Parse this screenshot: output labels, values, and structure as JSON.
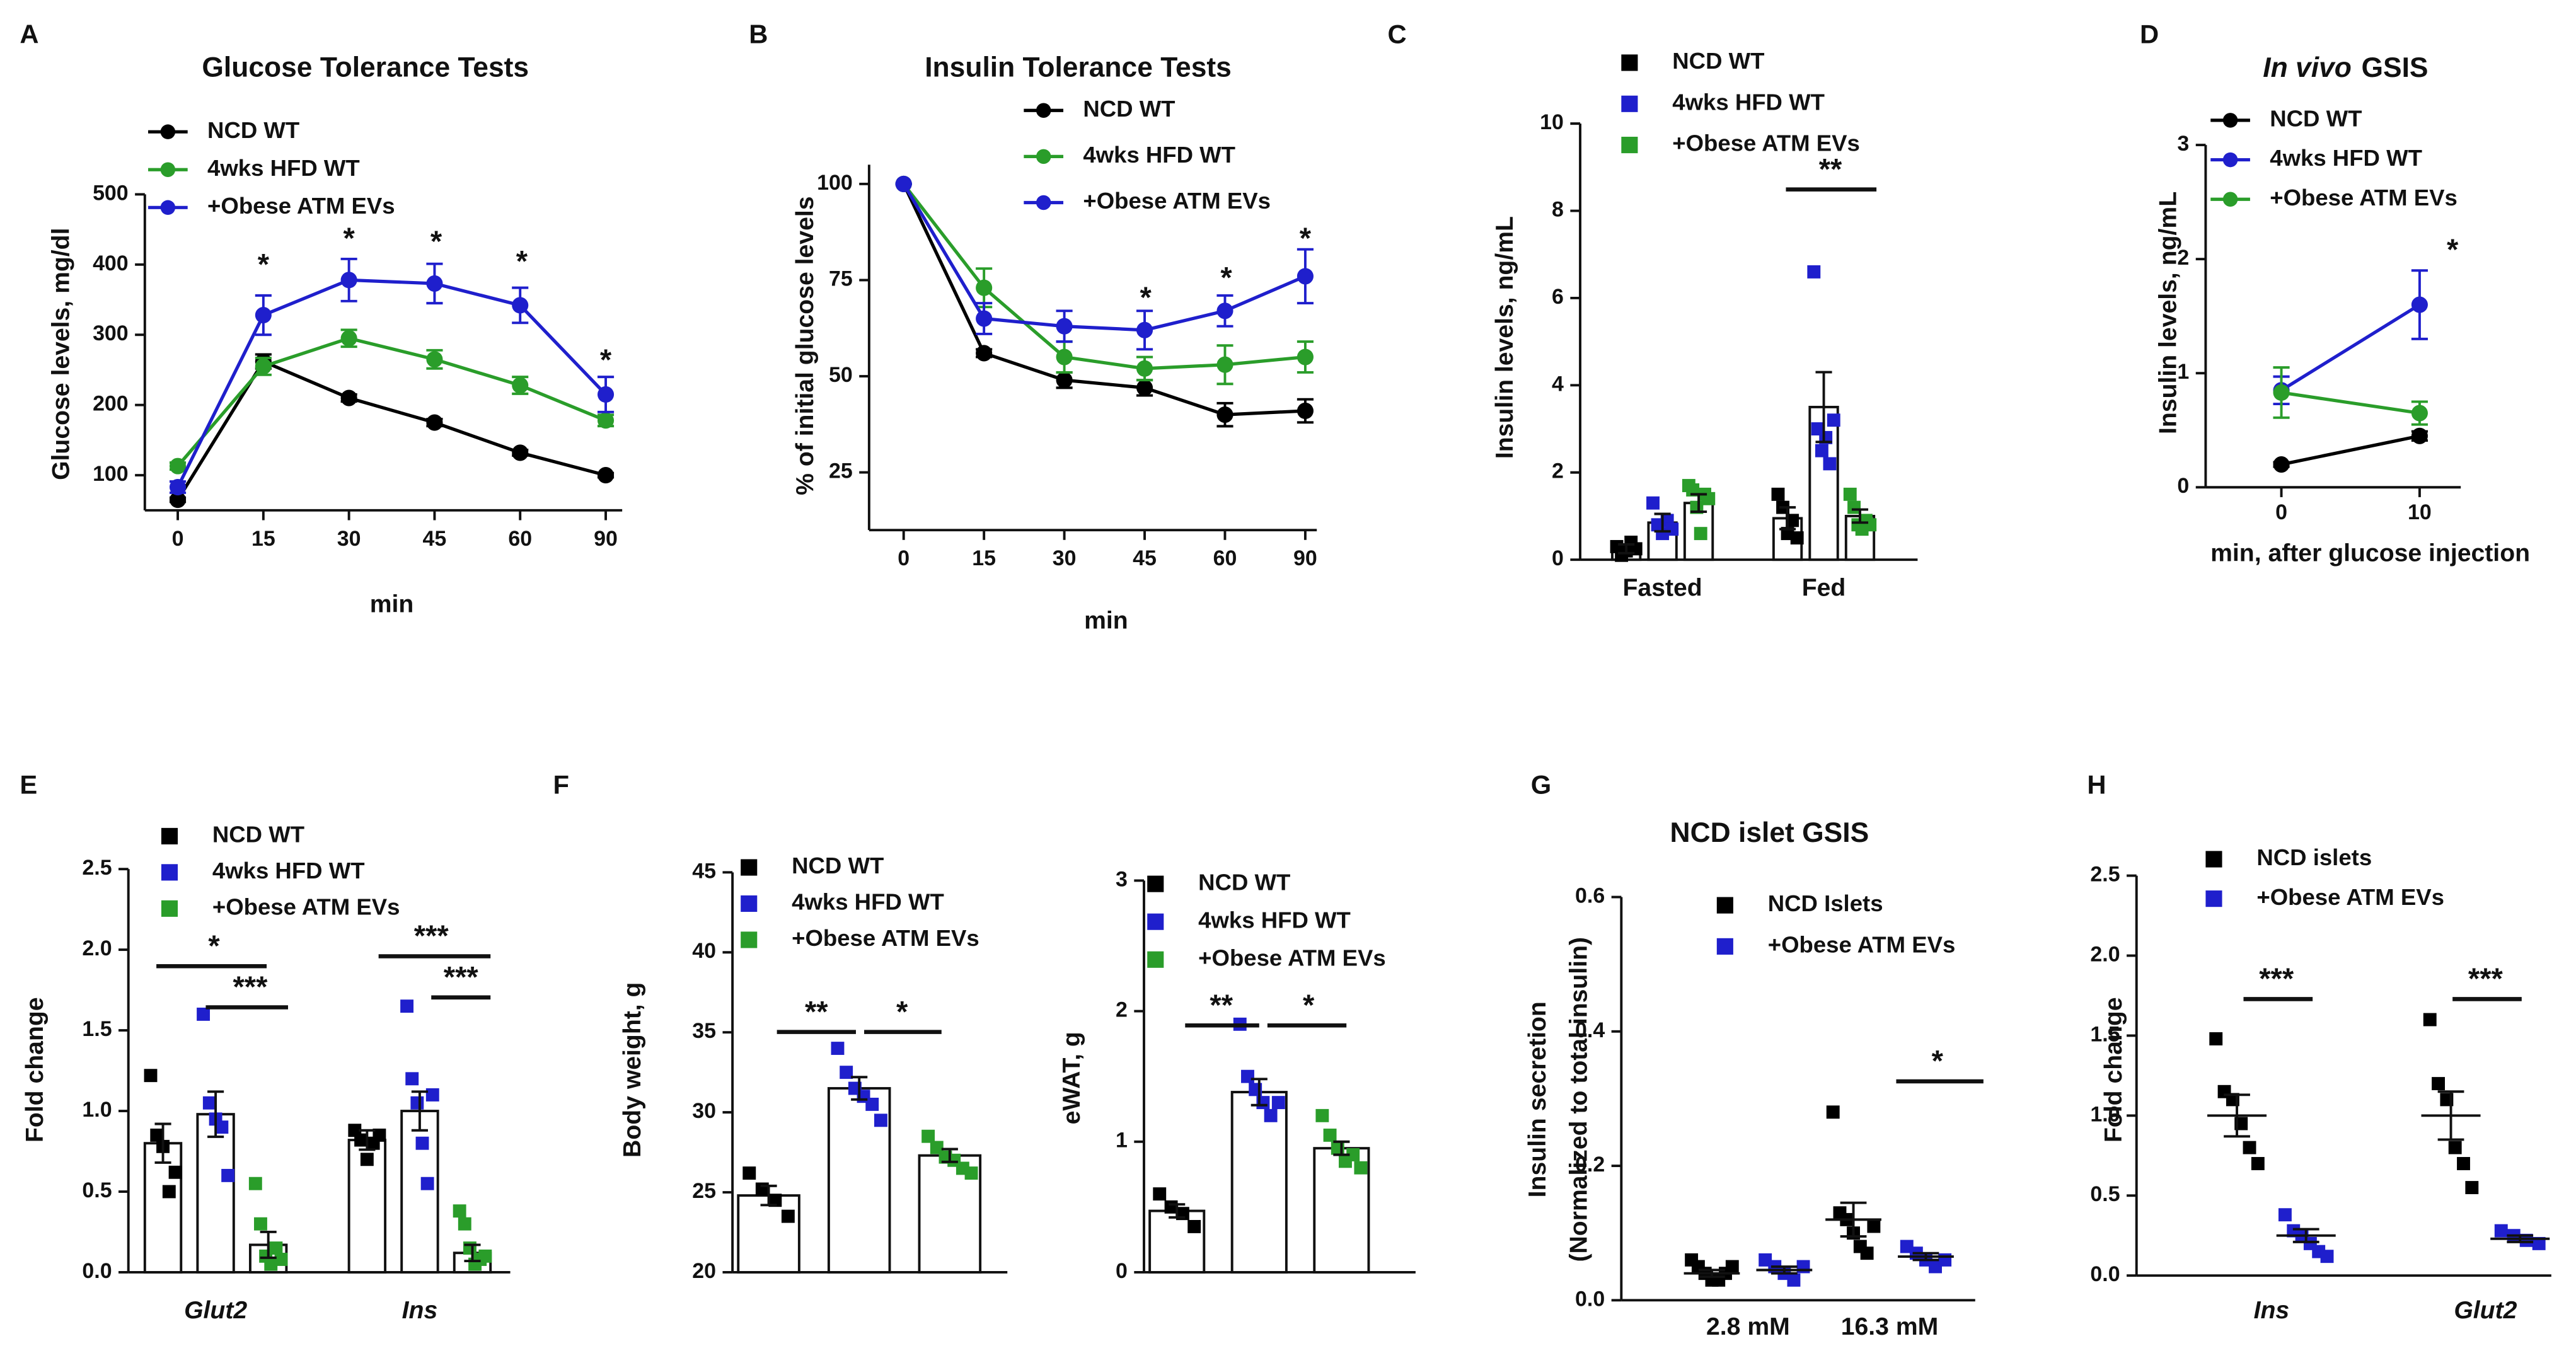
{
  "chart_data": [
    {
      "type": "line",
      "panel": "A",
      "title": "Glucose Tolerance Tests",
      "xlabel": "min",
      "ylabel": "Glucose levels, mg/dl",
      "categories": [
        "0",
        "15",
        "30",
        "45",
        "60",
        "90"
      ],
      "ylim": [
        50,
        500
      ],
      "yticks": [
        100,
        200,
        300,
        400,
        500
      ],
      "series": [
        {
          "name": "NCD WT",
          "color": "#000000",
          "values": [
            65,
            262,
            210,
            175,
            132,
            100
          ],
          "errors": [
            3,
            10,
            5,
            5,
            4,
            3
          ]
        },
        {
          "name": "4wks HFD WT",
          "color": "#2a9d2a",
          "values": [
            113,
            255,
            295,
            265,
            228,
            178
          ],
          "errors": [
            5,
            12,
            12,
            13,
            12,
            8
          ]
        },
        {
          "name": "+Obese ATM EVs",
          "color": "#1f1fcc",
          "values": [
            83,
            328,
            378,
            373,
            342,
            215
          ],
          "errors": [
            8,
            28,
            30,
            28,
            25,
            25
          ]
        }
      ],
      "annotations": [
        "*",
        "*",
        "*",
        "*",
        "*"
      ]
    },
    {
      "type": "line",
      "panel": "B",
      "title": "Insulin Tolerance Tests",
      "xlabel": "min",
      "ylabel": "% of initial glucose levels",
      "categories": [
        "0",
        "15",
        "30",
        "45",
        "60",
        "90"
      ],
      "ylim": [
        10,
        105
      ],
      "yticks": [
        25,
        50,
        75,
        100
      ],
      "series": [
        {
          "name": "NCD WT",
          "color": "#000000",
          "values": [
            100,
            56,
            49,
            47,
            40,
            41
          ],
          "errors": [
            0,
            1,
            2,
            2,
            3,
            3
          ]
        },
        {
          "name": "4wks HFD WT",
          "color": "#2a9d2a",
          "values": [
            100,
            73,
            55,
            52,
            53,
            55
          ],
          "errors": [
            0,
            5,
            4,
            3,
            5,
            4
          ]
        },
        {
          "name": "+Obese ATM EVs",
          "color": "#1f1fcc",
          "values": [
            100,
            65,
            63,
            62,
            67,
            76
          ],
          "errors": [
            0,
            4,
            4,
            5,
            4,
            7
          ]
        }
      ],
      "annotations": [
        "*",
        "*",
        "*"
      ]
    },
    {
      "type": "bar",
      "panel": "C",
      "ylabel": "Insulin levels, ng/mL",
      "categories": [
        "Fasted",
        "Fed"
      ],
      "ylim": [
        0,
        10
      ],
      "yticks": [
        0,
        2,
        4,
        6,
        8,
        10
      ],
      "series": [
        {
          "name": "NCD WT",
          "color": "#000000",
          "values": [
            0.25,
            0.95
          ],
          "errors": [
            0.1,
            0.25
          ],
          "points": [
            [
              0.3,
              0.1,
              0.2,
              0.4,
              0.25
            ],
            [
              1.5,
              1.2,
              0.6,
              0.9,
              0.5
            ]
          ]
        },
        {
          "name": "4wks HFD WT",
          "color": "#1f1fcc",
          "values": [
            0.85,
            3.5
          ],
          "errors": [
            0.2,
            0.8
          ],
          "points": [
            [
              1.3,
              0.8,
              0.6,
              0.9,
              0.7
            ],
            [
              6.6,
              3.0,
              2.5,
              2.8,
              2.2,
              3.2
            ]
          ]
        },
        {
          "name": "+Obese ATM EVs",
          "color": "#2a9d2a",
          "values": [
            1.3,
            1.0
          ],
          "errors": [
            0.2,
            0.15
          ],
          "points": [
            [
              1.7,
              1.6,
              1.2,
              0.6,
              1.5,
              1.4
            ],
            [
              1.5,
              1.2,
              0.8,
              0.7,
              0.9,
              0.8
            ]
          ]
        }
      ],
      "annotations": [
        "**"
      ]
    },
    {
      "type": "line",
      "panel": "D",
      "title_italic": "In vivo",
      "title": "GSIS",
      "xlabel": "min, after glucose injection",
      "ylabel": "Insulin levels, ng/mL",
      "categories": [
        "0",
        "10"
      ],
      "ylim": [
        0,
        3
      ],
      "yticks": [
        0,
        1,
        2,
        3
      ],
      "series": [
        {
          "name": "NCD WT",
          "color": "#000000",
          "values": [
            0.2,
            0.45
          ],
          "errors": [
            0.02,
            0.04
          ]
        },
        {
          "name": "4wks HFD WT",
          "color": "#1f1fcc",
          "values": [
            0.85,
            1.6
          ],
          "errors": [
            0.12,
            0.3
          ]
        },
        {
          "name": "+Obese ATM EVs",
          "color": "#2a9d2a",
          "values": [
            0.83,
            0.65
          ],
          "errors": [
            0.22,
            0.1
          ]
        }
      ],
      "annotations": [
        "*"
      ]
    },
    {
      "type": "bar",
      "panel": "E",
      "ylabel": "Fold change",
      "categories": [
        "Glut2",
        "Ins"
      ],
      "category_style": "italic",
      "ylim": [
        0,
        2.5
      ],
      "yticks": [
        {
          "value": 0,
          "label": "0.0"
        },
        {
          "value": 0.5,
          "label": "0.5"
        },
        {
          "value": 1,
          "label": "1.0"
        },
        {
          "value": 1.5,
          "label": "1.5"
        },
        {
          "value": 2,
          "label": "2.0"
        },
        {
          "value": 2.5,
          "label": "2.5"
        }
      ],
      "series": [
        {
          "name": "NCD WT",
          "color": "#000000",
          "values": [
            0.8,
            0.82
          ],
          "errors": [
            0.12,
            0.06
          ],
          "points": [
            [
              1.22,
              0.85,
              0.78,
              0.5,
              0.62
            ],
            [
              0.88,
              0.82,
              0.7,
              0.8,
              0.85
            ]
          ]
        },
        {
          "name": "4wks HFD WT",
          "color": "#1f1fcc",
          "values": [
            0.98,
            1.0
          ],
          "errors": [
            0.14,
            0.12
          ],
          "points": [
            [
              1.6,
              1.05,
              0.95,
              0.9,
              0.6
            ],
            [
              1.65,
              1.2,
              1.05,
              0.8,
              0.55,
              1.1
            ]
          ]
        },
        {
          "name": "+Obese ATM EVs",
          "color": "#2a9d2a",
          "values": [
            0.17,
            0.12
          ],
          "errors": [
            0.08,
            0.05
          ],
          "points": [
            [
              0.55,
              0.3,
              0.1,
              0.05,
              0.15,
              0.08
            ],
            [
              0.38,
              0.3,
              0.15,
              0.05,
              0.08,
              0.1
            ]
          ]
        }
      ],
      "annotations": [
        "*",
        "***",
        "***",
        "***"
      ]
    },
    {
      "type": "bar",
      "panel": "F",
      "ylabel": "Body weight, g",
      "categories": [
        null
      ],
      "ylim": [
        20,
        45
      ],
      "yticks": [
        20,
        25,
        30,
        35,
        40,
        45
      ],
      "series": [
        {
          "name": "NCD WT",
          "color": "#000000",
          "values": [
            24.8
          ],
          "errors": [
            0.6
          ],
          "points": [
            [
              26.2,
              25.2,
              24.5,
              23.5
            ]
          ]
        },
        {
          "name": "4wks HFD WT",
          "color": "#1f1fcc",
          "values": [
            31.5
          ],
          "errors": [
            0.7
          ],
          "points": [
            [
              34,
              32.5,
              31.5,
              31,
              30.5,
              29.5
            ]
          ]
        },
        {
          "name": "+Obese ATM EVs",
          "color": "#2a9d2a",
          "values": [
            27.3
          ],
          "errors": [
            0.4
          ],
          "points": [
            [
              28.5,
              27.8,
              27.2,
              27,
              26.5,
              26.2
            ]
          ]
        }
      ],
      "annotations": [
        "**",
        "*"
      ]
    },
    {
      "type": "bar",
      "ylabel": "eWAT, g",
      "categories": [
        null
      ],
      "ylim": [
        0,
        3
      ],
      "yticks": [
        0,
        1,
        2,
        3
      ],
      "series": [
        {
          "name": "NCD WT",
          "color": "#000000",
          "values": [
            0.47
          ],
          "errors": [
            0.05
          ],
          "points": [
            [
              0.6,
              0.5,
              0.45,
              0.35
            ]
          ]
        },
        {
          "name": "4wks HFD WT",
          "color": "#1f1fcc",
          "values": [
            1.38
          ],
          "errors": [
            0.1
          ],
          "points": [
            [
              1.9,
              1.5,
              1.4,
              1.3,
              1.2,
              1.3
            ]
          ]
        },
        {
          "name": "+Obese ATM EVs",
          "color": "#2a9d2a",
          "values": [
            0.95
          ],
          "errors": [
            0.05
          ],
          "points": [
            [
              1.2,
              1.05,
              0.95,
              0.85,
              0.9,
              0.8
            ]
          ]
        }
      ],
      "annotations": [
        "**",
        "*"
      ]
    },
    {
      "type": "strip",
      "panel": "G",
      "title": "NCD islet GSIS",
      "ylabel": [
        "Insulin secretion",
        "(Normalized to total insulin)"
      ],
      "categories": [
        "2.8 mM",
        "16.3 mM"
      ],
      "ylim": [
        0,
        0.6
      ],
      "yticks": [
        {
          "value": 0,
          "label": "0.0"
        },
        {
          "value": 0.2,
          "label": "0.2"
        },
        {
          "value": 0.4,
          "label": "0.4"
        },
        {
          "value": 0.6,
          "label": "0.6"
        }
      ],
      "series": [
        {
          "name": "NCD Islets",
          "color": "#000000",
          "values": [
            0.04,
            0.12
          ],
          "errors": [
            0.005,
            0.025
          ],
          "points": [
            [
              0.06,
              0.05,
              0.04,
              0.03,
              0.03,
              0.04,
              0.05
            ],
            [
              0.28,
              0.13,
              0.12,
              0.1,
              0.08,
              0.07,
              0.11
            ]
          ]
        },
        {
          "name": "+Obese ATM EVs",
          "color": "#1f1fcc",
          "values": [
            0.045,
            0.065
          ],
          "errors": [
            0.005,
            0.005
          ],
          "points": [
            [
              0.06,
              0.05,
              0.04,
              0.03,
              0.05
            ],
            [
              0.08,
              0.07,
              0.06,
              0.05,
              0.06
            ]
          ]
        }
      ],
      "annotations": [
        "*"
      ]
    },
    {
      "type": "strip",
      "panel": "H",
      "ylabel": "Fold change",
      "categories": [
        "Ins",
        "Glut2"
      ],
      "category_style": "italic",
      "ylim": [
        0,
        2.5
      ],
      "yticks": [
        {
          "value": 0,
          "label": "0.0"
        },
        {
          "value": 0.5,
          "label": "0.5"
        },
        {
          "value": 1,
          "label": "1.0"
        },
        {
          "value": 1.5,
          "label": "1.5"
        },
        {
          "value": 2,
          "label": "2.0"
        },
        {
          "value": 2.5,
          "label": "2.5"
        }
      ],
      "series": [
        {
          "name": "NCD islets",
          "color": "#000000",
          "values": [
            1.0,
            1.0
          ],
          "errors": [
            0.13,
            0.15
          ],
          "points": [
            [
              1.48,
              1.15,
              1.1,
              0.95,
              0.8,
              0.7
            ],
            [
              1.6,
              1.2,
              1.1,
              0.8,
              0.7,
              0.55
            ]
          ]
        },
        {
          "name": "+Obese ATM EVs",
          "color": "#1f1fcc",
          "values": [
            0.25,
            0.23
          ],
          "errors": [
            0.04,
            0.02
          ],
          "points": [
            [
              0.38,
              0.28,
              0.25,
              0.2,
              0.15,
              0.12
            ],
            [
              0.28,
              0.25,
              0.22,
              0.2
            ]
          ]
        }
      ],
      "annotations": [
        "***",
        "***"
      ]
    }
  ]
}
